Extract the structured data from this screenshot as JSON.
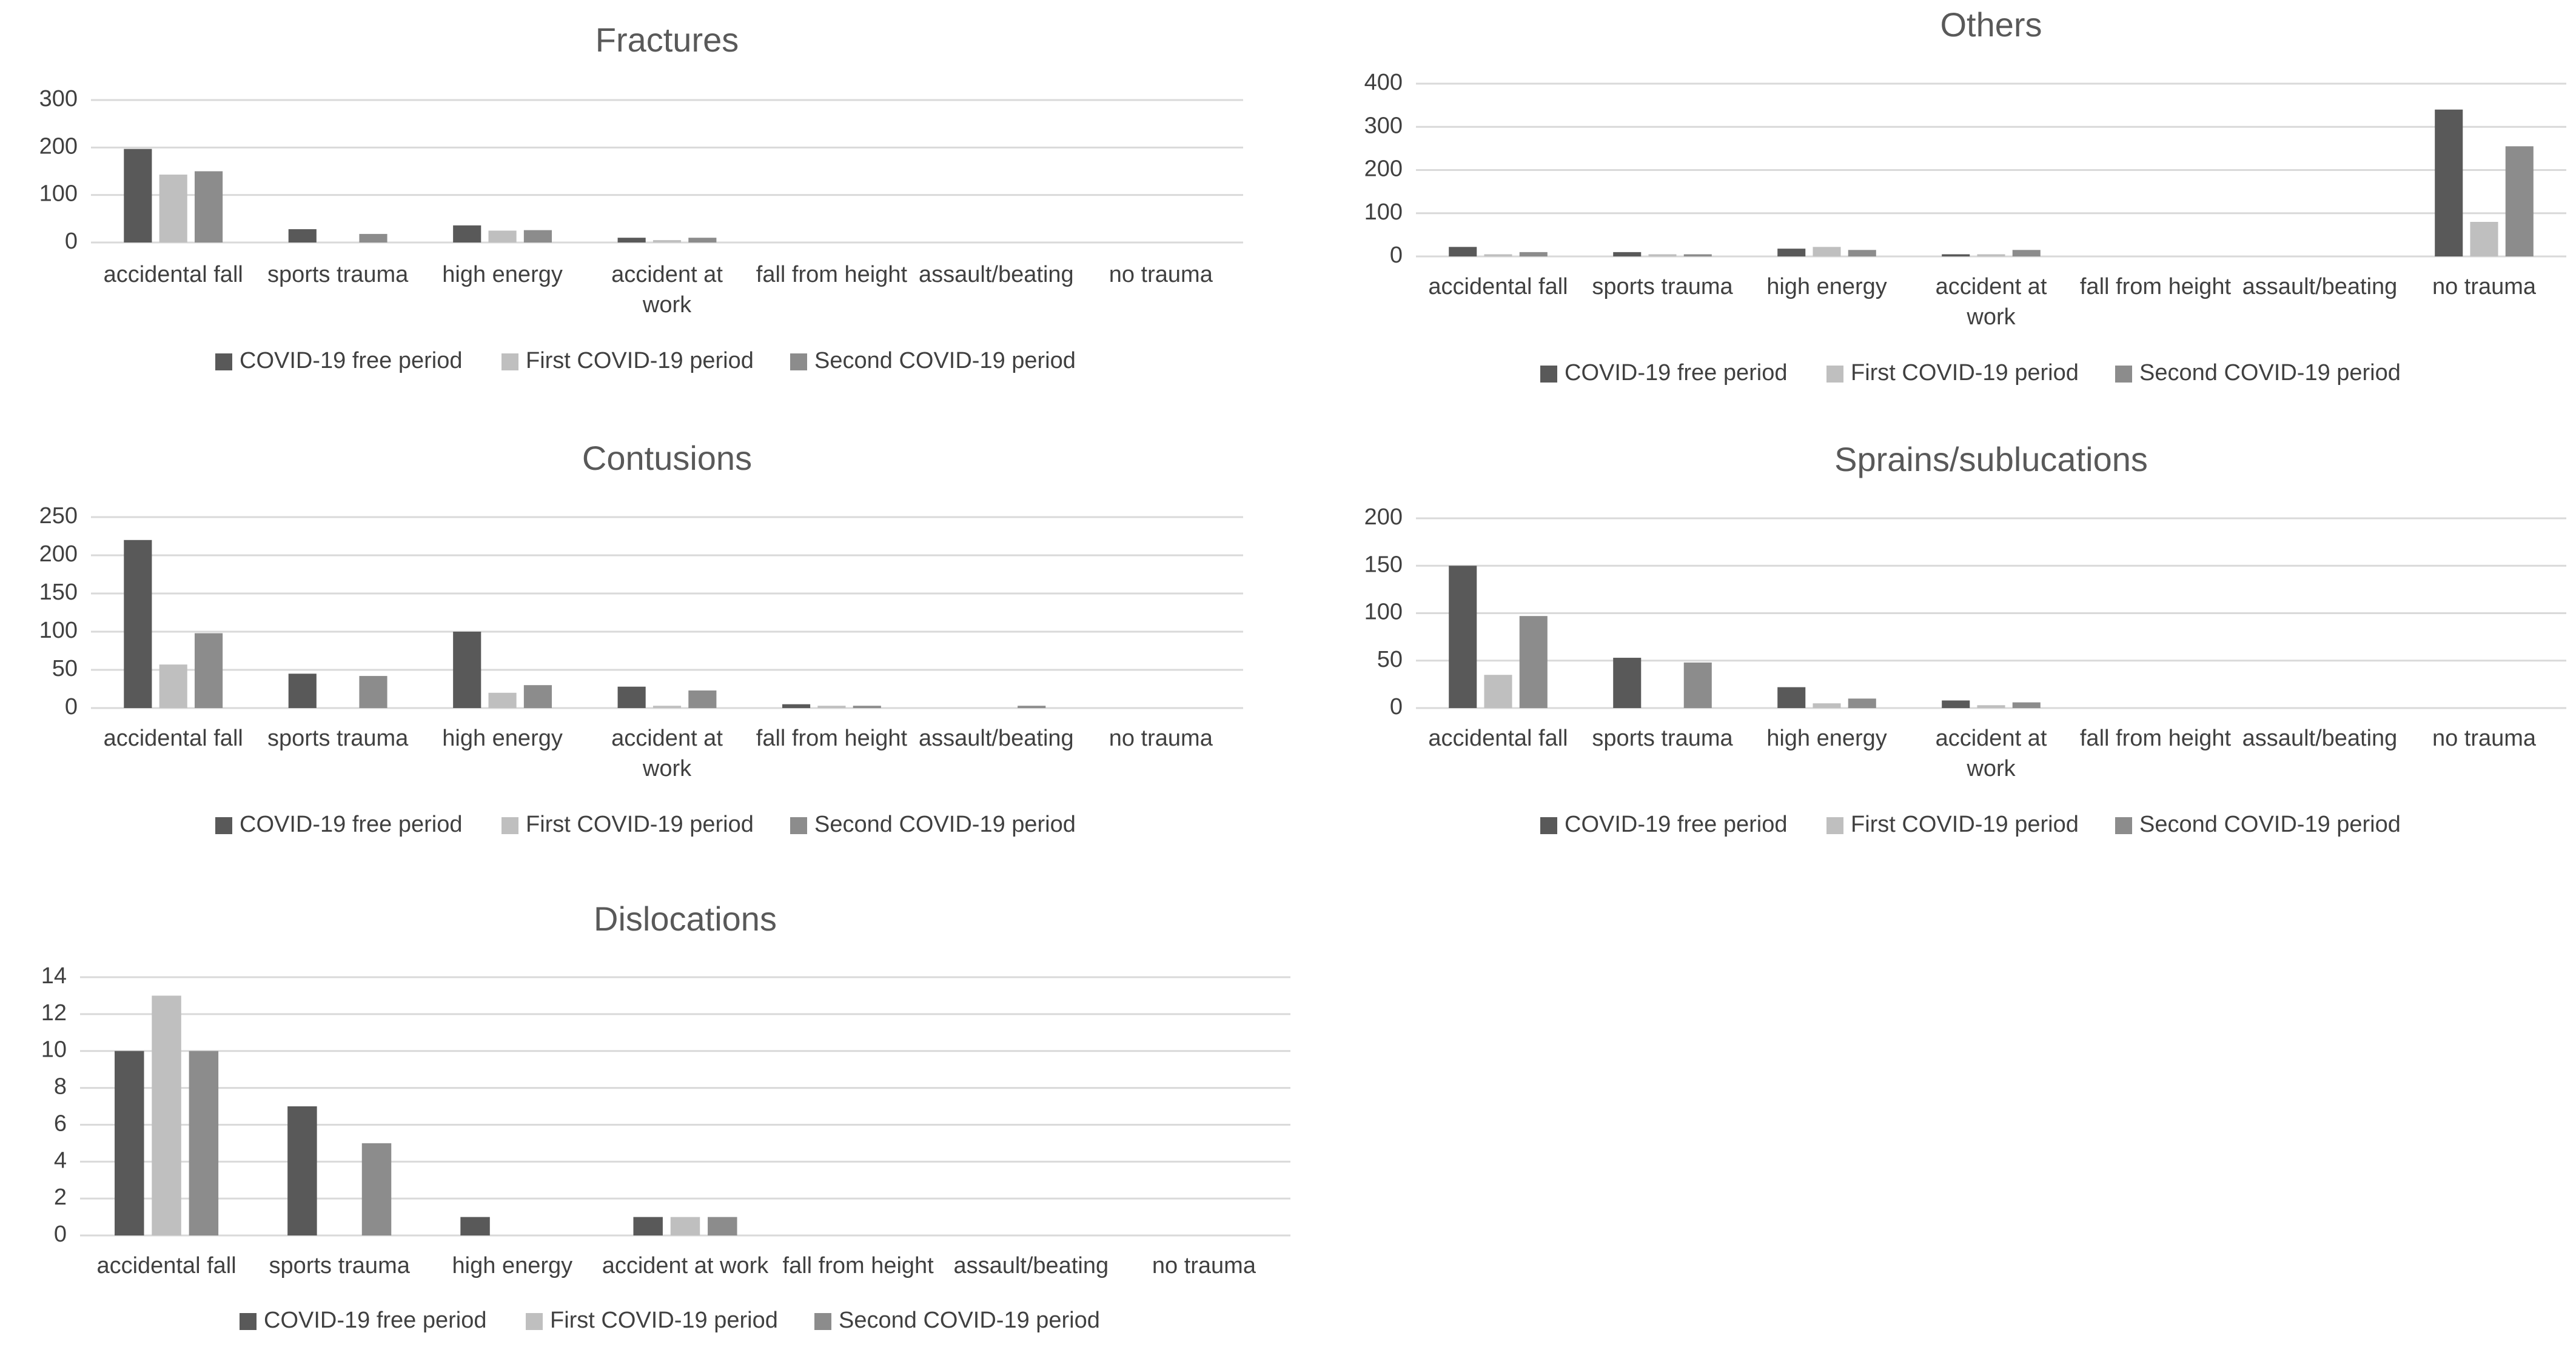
{
  "colors": {
    "series": [
      "#595959",
      "#bfbfbf",
      "#8c8c8c"
    ],
    "grid": "#d9d9d9",
    "text": "#404040",
    "title": "#595959"
  },
  "chart_data": [
    {
      "type": "bar",
      "title": "Fractures",
      "categories": [
        "accidental fall",
        "sports trauma",
        "high energy",
        "accident at work",
        "fall from height",
        "assault/beating",
        "no trauma"
      ],
      "category_lines": [
        [
          "accidental fall"
        ],
        [
          "sports trauma"
        ],
        [
          "high energy"
        ],
        [
          "accident at",
          "work"
        ],
        [
          "fall from height"
        ],
        [
          "assault/beating"
        ],
        [
          "no trauma"
        ]
      ],
      "yticks": [
        "0",
        "100",
        "200",
        "300"
      ],
      "ylim": [
        0,
        300
      ],
      "series": [
        {
          "name": "COVID-19 free period",
          "values": [
            197,
            28,
            36,
            10,
            0,
            0,
            0
          ]
        },
        {
          "name": "First COVID-19 period",
          "values": [
            143,
            0,
            25,
            5,
            0,
            0,
            0
          ]
        },
        {
          "name": "Second COVID-19 period",
          "values": [
            150,
            18,
            26,
            10,
            0,
            0,
            0
          ]
        }
      ],
      "xlabel": "",
      "ylabel": "",
      "legend": "bottom"
    },
    {
      "type": "bar",
      "title": "Others",
      "categories": [
        "accidental fall",
        "sports trauma",
        "high energy",
        "accident at work",
        "fall from height",
        "assault/beating",
        "no trauma"
      ],
      "category_lines": [
        [
          "accidental fall"
        ],
        [
          "sports trauma"
        ],
        [
          "high energy"
        ],
        [
          "accident at",
          "work"
        ],
        [
          "fall from height"
        ],
        [
          "assault/beating"
        ],
        [
          "no trauma"
        ]
      ],
      "yticks": [
        "0",
        "100",
        "200",
        "300",
        "400"
      ],
      "ylim": [
        0,
        400
      ],
      "series": [
        {
          "name": "COVID-19 free period",
          "values": [
            22,
            10,
            18,
            5,
            0,
            0,
            340
          ]
        },
        {
          "name": "First COVID-19 period",
          "values": [
            5,
            5,
            22,
            5,
            0,
            0,
            80
          ]
        },
        {
          "name": "Second COVID-19 period",
          "values": [
            10,
            5,
            15,
            15,
            0,
            0,
            255
          ]
        }
      ],
      "xlabel": "",
      "ylabel": "",
      "legend": "bottom"
    },
    {
      "type": "bar",
      "title": "Contusions",
      "categories": [
        "accidental fall",
        "sports trauma",
        "high energy",
        "accident at work",
        "fall from height",
        "assault/beating",
        "no trauma"
      ],
      "category_lines": [
        [
          "accidental fall"
        ],
        [
          "sports trauma"
        ],
        [
          "high energy"
        ],
        [
          "accident at",
          "work"
        ],
        [
          "fall from height"
        ],
        [
          "assault/beating"
        ],
        [
          "no trauma"
        ]
      ],
      "yticks": [
        "0",
        "50",
        "100",
        "150",
        "200",
        "250"
      ],
      "ylim": [
        0,
        250
      ],
      "series": [
        {
          "name": "COVID-19 free period",
          "values": [
            220,
            45,
            100,
            28,
            5,
            0,
            0
          ]
        },
        {
          "name": "First COVID-19 period",
          "values": [
            57,
            0,
            20,
            3,
            3,
            0,
            0
          ]
        },
        {
          "name": "Second COVID-19 period",
          "values": [
            98,
            42,
            30,
            23,
            3,
            3,
            0
          ]
        }
      ],
      "xlabel": "",
      "ylabel": "",
      "legend": "bottom"
    },
    {
      "type": "bar",
      "title": "Sprains/sublucations",
      "categories": [
        "accidental fall",
        "sports trauma",
        "high energy",
        "accident at work",
        "fall from height",
        "assault/beating",
        "no trauma"
      ],
      "category_lines": [
        [
          "accidental fall"
        ],
        [
          "sports trauma"
        ],
        [
          "high energy"
        ],
        [
          "accident at",
          "work"
        ],
        [
          "fall from height"
        ],
        [
          "assault/beating"
        ],
        [
          "no trauma"
        ]
      ],
      "yticks": [
        "0",
        "50",
        "100",
        "150",
        "200"
      ],
      "ylim": [
        0,
        200
      ],
      "series": [
        {
          "name": "COVID-19 free period",
          "values": [
            150,
            53,
            22,
            8,
            0,
            0,
            0
          ]
        },
        {
          "name": "First COVID-19 period",
          "values": [
            35,
            0,
            5,
            3,
            0,
            0,
            0
          ]
        },
        {
          "name": "Second COVID-19 period",
          "values": [
            97,
            48,
            10,
            6,
            0,
            0,
            0
          ]
        }
      ],
      "xlabel": "",
      "ylabel": "",
      "legend": "bottom"
    },
    {
      "type": "bar",
      "title": "Dislocations",
      "categories": [
        "accidental fall",
        "sports trauma",
        "high energy",
        "accident at work",
        "fall from height",
        "assault/beating",
        "no trauma"
      ],
      "category_lines": [
        [
          "accidental fall"
        ],
        [
          "sports trauma"
        ],
        [
          "high energy"
        ],
        [
          "accident at work"
        ],
        [
          "fall from height"
        ],
        [
          "assault/beating"
        ],
        [
          "no trauma"
        ]
      ],
      "yticks": [
        "0",
        "2",
        "4",
        "6",
        "8",
        "10",
        "12",
        "14"
      ],
      "ylim": [
        0,
        14
      ],
      "series": [
        {
          "name": "COVID-19 free period",
          "values": [
            10,
            7,
            1,
            1,
            0,
            0,
            0
          ]
        },
        {
          "name": "First COVID-19 period",
          "values": [
            13,
            0,
            0,
            1,
            0,
            0,
            0
          ]
        },
        {
          "name": "Second COVID-19 period",
          "values": [
            10,
            5,
            0,
            1,
            0,
            0,
            0
          ]
        }
      ],
      "xlabel": "",
      "ylabel": "",
      "legend": "bottom"
    }
  ]
}
